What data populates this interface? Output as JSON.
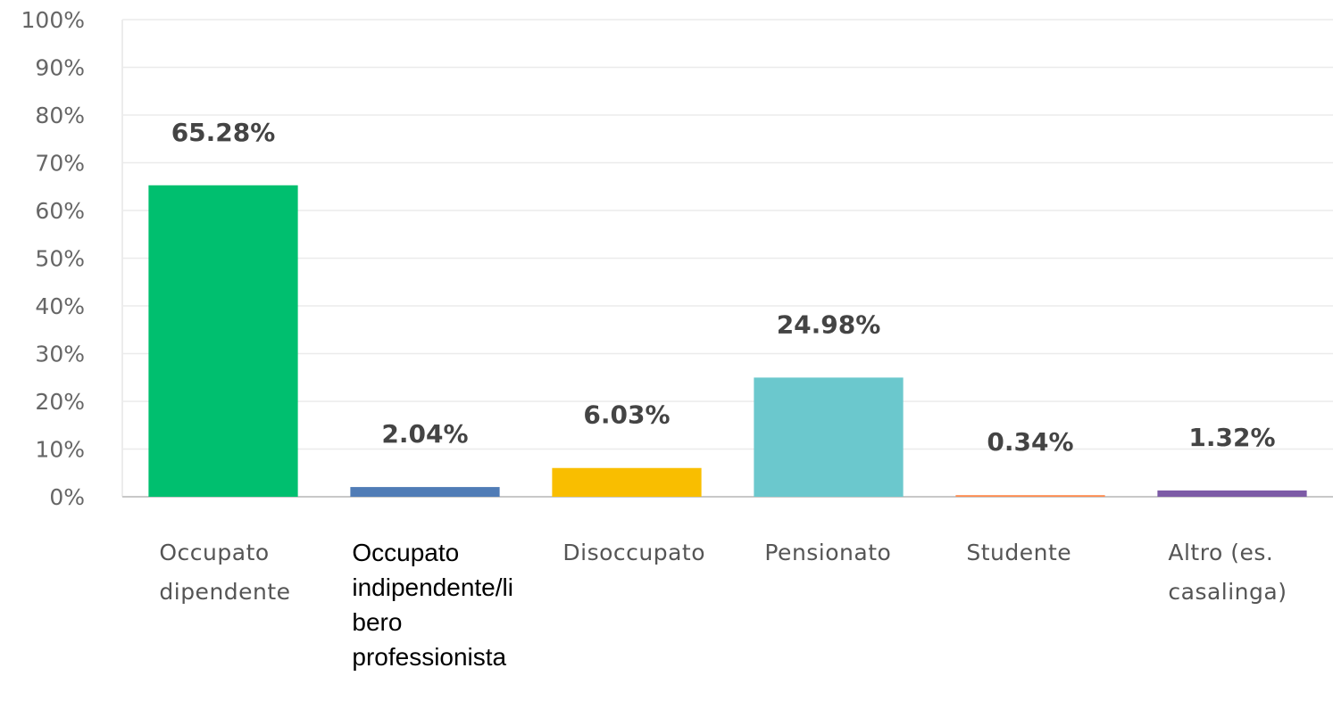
{
  "chart_data": {
    "type": "bar",
    "categories": [
      "Occupato dipendente",
      "Occupato indipendente/libero professionista",
      "Disoccupato",
      "Pensionato",
      "Studente",
      "Altro (es. casalinga)"
    ],
    "values": [
      65.28,
      2.04,
      6.03,
      24.98,
      0.34,
      1.32
    ],
    "value_labels": [
      "65.28%",
      "2.04%",
      "6.03%",
      "24.98%",
      "0.34%",
      "1.32%"
    ],
    "colors": [
      "#00bf6f",
      "#507cb6",
      "#f9be00",
      "#6bc8cd",
      "#ff8b4f",
      "#7d5ba6"
    ],
    "ylim": [
      0,
      100
    ],
    "yticks": [
      {
        "value": 0,
        "label": "0%"
      },
      {
        "value": 10,
        "label": "10%"
      },
      {
        "value": 20,
        "label": "20%"
      },
      {
        "value": 30,
        "label": "30%"
      },
      {
        "value": 40,
        "label": "40%"
      },
      {
        "value": 50,
        "label": "50%"
      },
      {
        "value": 60,
        "label": "60%"
      },
      {
        "value": 70,
        "label": "70%"
      },
      {
        "value": 80,
        "label": "80%"
      },
      {
        "value": 90,
        "label": "90%"
      },
      {
        "value": 100,
        "label": "100%"
      }
    ],
    "grid": true
  }
}
